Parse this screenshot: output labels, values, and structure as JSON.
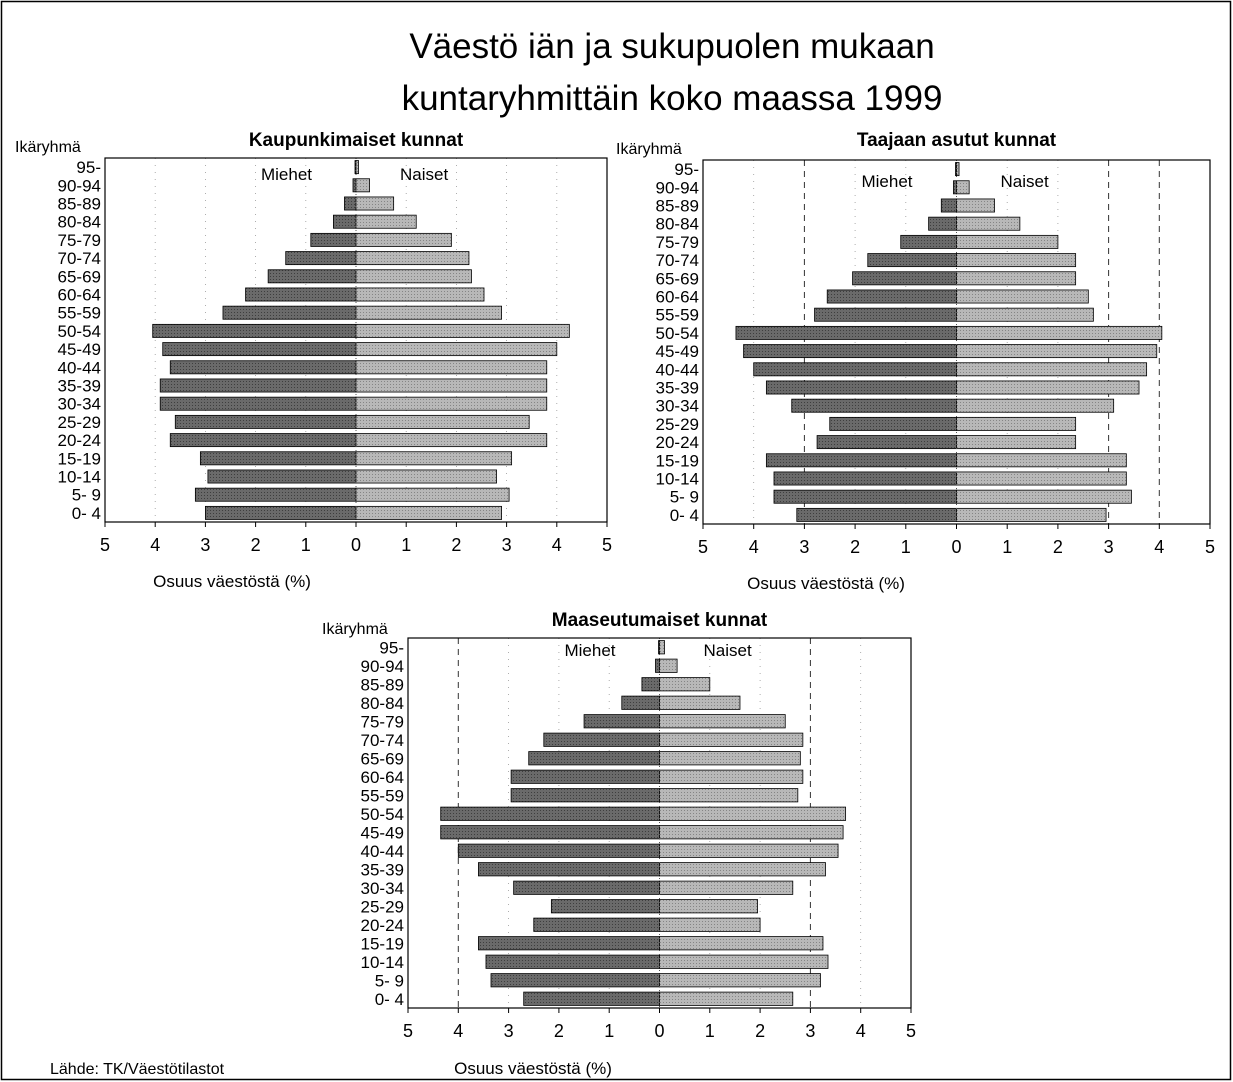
{
  "title_line1": "Väestö iän ja sukupuolen mukaan",
  "title_line2": "kuntaryhmittäin koko maassa 1999",
  "source": "Lähde: TK/Väestötilastot",
  "colors": {
    "male_bar": "#6a6a6a",
    "female_bar": "#b4b4b4",
    "frame": "#000000"
  },
  "chart_data": [
    {
      "type": "bar",
      "title": "Kaupunkimaiset kunnat",
      "ylabel": "Ikäryhmä",
      "xlabel": "Osuus väestöstä (%)",
      "left_label": "Miehet",
      "right_label": "Naiset",
      "xlim": [
        -5,
        5
      ],
      "xtick_labels": [
        "5",
        "4",
        "3",
        "2",
        "1",
        "0",
        "1",
        "2",
        "3",
        "4",
        "5"
      ],
      "categories": [
        "95-",
        "90-94",
        "85-89",
        "80-84",
        "75-79",
        "70-74",
        "65-69",
        "60-64",
        "55-59",
        "50-54",
        "45-49",
        "40-44",
        "35-39",
        "30-34",
        "25-29",
        "20-24",
        "15-19",
        "10-14",
        "5- 9",
        "0- 4"
      ],
      "series": [
        {
          "name": "Miehet",
          "values": [
            0.02,
            0.06,
            0.23,
            0.45,
            0.9,
            1.4,
            1.75,
            2.2,
            2.65,
            4.05,
            3.85,
            3.7,
            3.9,
            3.9,
            3.6,
            3.7,
            3.1,
            2.95,
            3.2,
            3.0
          ]
        },
        {
          "name": "Naiset",
          "values": [
            0.05,
            0.27,
            0.75,
            1.2,
            1.9,
            2.25,
            2.3,
            2.55,
            2.9,
            4.25,
            4.0,
            3.8,
            3.8,
            3.8,
            3.45,
            3.8,
            3.1,
            2.8,
            3.05,
            2.9
          ]
        }
      ]
    },
    {
      "type": "bar",
      "title": "Taajaan asutut kunnat",
      "ylabel": "Ikäryhmä",
      "xlabel": "Osuus väestöstä (%)",
      "left_label": "Miehet",
      "right_label": "Naiset",
      "xlim": [
        -5,
        5
      ],
      "xtick_labels": [
        "5",
        "4",
        "3",
        "2",
        "1",
        "0",
        "1",
        "2",
        "3",
        "4",
        "5"
      ],
      "categories": [
        "95-",
        "90-94",
        "85-89",
        "80-84",
        "75-79",
        "70-74",
        "65-69",
        "60-64",
        "55-59",
        "50-54",
        "45-49",
        "40-44",
        "35-39",
        "30-34",
        "25-29",
        "20-24",
        "15-19",
        "10-14",
        "5- 9",
        "0- 4"
      ],
      "series": [
        {
          "name": "Miehet",
          "values": [
            0.02,
            0.06,
            0.3,
            0.55,
            1.1,
            1.75,
            2.05,
            2.55,
            2.8,
            4.35,
            4.2,
            4.0,
            3.75,
            3.25,
            2.5,
            2.75,
            3.75,
            3.6,
            3.6,
            3.15
          ]
        },
        {
          "name": "Naiset",
          "values": [
            0.05,
            0.25,
            0.75,
            1.25,
            2.0,
            2.35,
            2.35,
            2.6,
            2.7,
            4.05,
            3.95,
            3.75,
            3.6,
            3.1,
            2.35,
            2.35,
            3.35,
            3.35,
            3.45,
            2.95
          ]
        }
      ]
    },
    {
      "type": "bar",
      "title": "Maaseutumaiset kunnat",
      "ylabel": "Ikäryhmä",
      "xlabel": "Osuus väestöstä (%)",
      "left_label": "Miehet",
      "right_label": "Naiset",
      "xlim": [
        -5,
        5
      ],
      "xtick_labels": [
        "5",
        "4",
        "3",
        "2",
        "1",
        "0",
        "1",
        "2",
        "3",
        "4",
        "5"
      ],
      "categories": [
        "95-",
        "90-94",
        "85-89",
        "80-84",
        "75-79",
        "70-74",
        "65-69",
        "60-64",
        "55-59",
        "50-54",
        "45-49",
        "40-44",
        "35-39",
        "30-34",
        "25-29",
        "20-24",
        "15-19",
        "10-14",
        "5- 9",
        "0- 4"
      ],
      "series": [
        {
          "name": "Miehet",
          "values": [
            0.02,
            0.08,
            0.35,
            0.75,
            1.5,
            2.3,
            2.6,
            2.95,
            2.95,
            4.35,
            4.35,
            4.0,
            3.6,
            2.9,
            2.15,
            2.5,
            3.6,
            3.45,
            3.35,
            2.7
          ]
        },
        {
          "name": "Naiset",
          "values": [
            0.1,
            0.35,
            1.0,
            1.6,
            2.5,
            2.85,
            2.8,
            2.85,
            2.75,
            3.7,
            3.65,
            3.55,
            3.3,
            2.65,
            1.95,
            2.0,
            3.25,
            3.35,
            3.2,
            2.65
          ]
        }
      ]
    }
  ]
}
